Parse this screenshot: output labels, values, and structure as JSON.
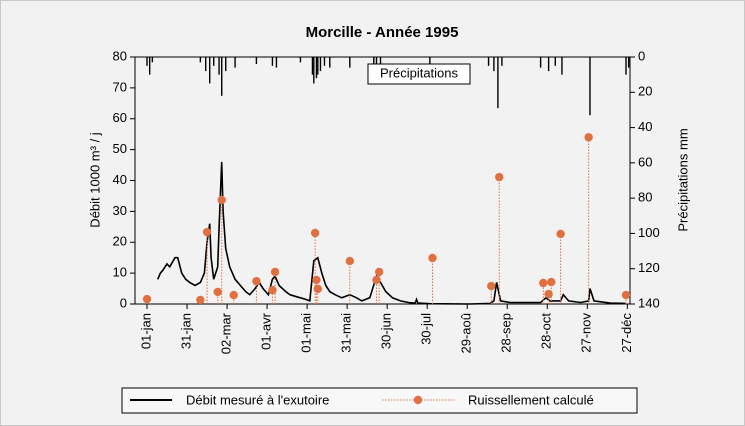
{
  "chart_data": {
    "type": "hydrograph",
    "title": "Morcille - Année 1995",
    "ylabel": "Débit 1000 m³ / j",
    "y2label": "Précipitations mm",
    "xlim": [
      -8,
      363
    ],
    "xticks": [
      {
        "value": 1,
        "label": "01-jan"
      },
      {
        "value": 31,
        "label": "31-jan"
      },
      {
        "value": 61,
        "label": "02-mar"
      },
      {
        "value": 91,
        "label": "01-avr"
      },
      {
        "value": 121,
        "label": "01-mai"
      },
      {
        "value": 151,
        "label": "31-mai"
      },
      {
        "value": 181,
        "label": "30-jun"
      },
      {
        "value": 211,
        "label": "30-jul"
      },
      {
        "value": 241,
        "label": "29-aoû"
      },
      {
        "value": 271,
        "label": "28-sep"
      },
      {
        "value": 301,
        "label": "28-oct"
      },
      {
        "value": 331,
        "label": "27-nov"
      },
      {
        "value": 361,
        "label": "27-déc"
      }
    ],
    "ylim": [
      0,
      80
    ],
    "yticks": [
      0,
      10,
      20,
      30,
      40,
      50,
      60,
      70,
      80
    ],
    "y2lim": [
      0,
      140
    ],
    "y2ticks": [
      0,
      20,
      40,
      60,
      80,
      100,
      120,
      140
    ],
    "y2_inverted": true,
    "series": [
      {
        "name": "Débit mesuré à l'exutoire",
        "type": "line",
        "color": "#000000",
        "x": [
          9,
          11,
          13,
          16,
          18,
          22,
          24,
          27,
          30,
          33,
          37,
          41,
          44,
          46,
          48,
          49,
          51,
          54,
          55,
          57,
          58,
          60,
          63,
          67,
          71,
          75,
          78,
          82,
          85,
          88,
          92,
          95,
          97,
          100,
          105,
          108,
          112,
          116,
          120,
          123,
          126,
          129,
          132,
          135,
          138,
          142,
          147,
          153,
          158,
          162,
          168,
          173,
          176,
          180,
          185,
          191,
          197,
          202,
          203,
          204,
          213,
          243,
          258,
          261,
          263,
          266,
          273,
          296,
          300,
          303,
          311,
          313,
          317,
          326,
          332,
          333,
          336,
          348,
          360
        ],
        "values": [
          8,
          10,
          11,
          13,
          12,
          15,
          15,
          10,
          8,
          7,
          6,
          7,
          10,
          20,
          26,
          15,
          8,
          12,
          25,
          46,
          30,
          18,
          12,
          8,
          6,
          4,
          3,
          5,
          7,
          5,
          3,
          8,
          9,
          6,
          4,
          3,
          2.5,
          2,
          1.5,
          1,
          14,
          15,
          10,
          6,
          4,
          3,
          2,
          3,
          2,
          1,
          2,
          9,
          7,
          4,
          2,
          1,
          0.5,
          0.3,
          1.5,
          0.3,
          0.1,
          0,
          0.2,
          1,
          7,
          1,
          0.5,
          0.5,
          2,
          1,
          1,
          3,
          1,
          0.5,
          1,
          5,
          1,
          0.3,
          0.2
        ]
      },
      {
        "name": "Ruissellement calculé",
        "type": "stem",
        "color": "#e07040",
        "x": [
          1,
          41,
          46,
          54,
          57,
          66,
          83,
          95,
          97,
          127,
          128,
          129,
          153,
          173,
          175,
          215,
          259,
          265,
          298,
          302,
          304,
          311,
          332,
          360
        ],
        "values": [
          1.6,
          1.3,
          23.3,
          3.9,
          33.7,
          2.9,
          7.4,
          4.5,
          10.4,
          23,
          7.8,
          4.9,
          13.9,
          7.8,
          10.4,
          14.9,
          5.8,
          41.1,
          6.8,
          3.2,
          7.1,
          22.7,
          54,
          2.9
        ]
      },
      {
        "name": "Précipitations",
        "type": "precip",
        "axis": "y2",
        "color": "#000000",
        "x": [
          1,
          3,
          5,
          41,
          45,
          48,
          51,
          55,
          57,
          60,
          67,
          83,
          95,
          98,
          116,
          125,
          126,
          128,
          129,
          131,
          134,
          138,
          153,
          171,
          173,
          176,
          213,
          257,
          261,
          264,
          267,
          296,
          302,
          307,
          312,
          333,
          360,
          362
        ],
        "values": [
          5,
          10,
          3,
          3,
          8,
          15,
          5,
          10,
          22,
          8,
          6,
          4,
          5,
          6,
          3,
          10,
          15,
          12,
          10,
          8,
          5,
          6,
          6,
          8,
          7,
          4,
          4,
          5,
          8,
          29,
          5,
          6,
          8,
          5,
          10,
          33,
          10,
          6
        ]
      }
    ]
  }
}
